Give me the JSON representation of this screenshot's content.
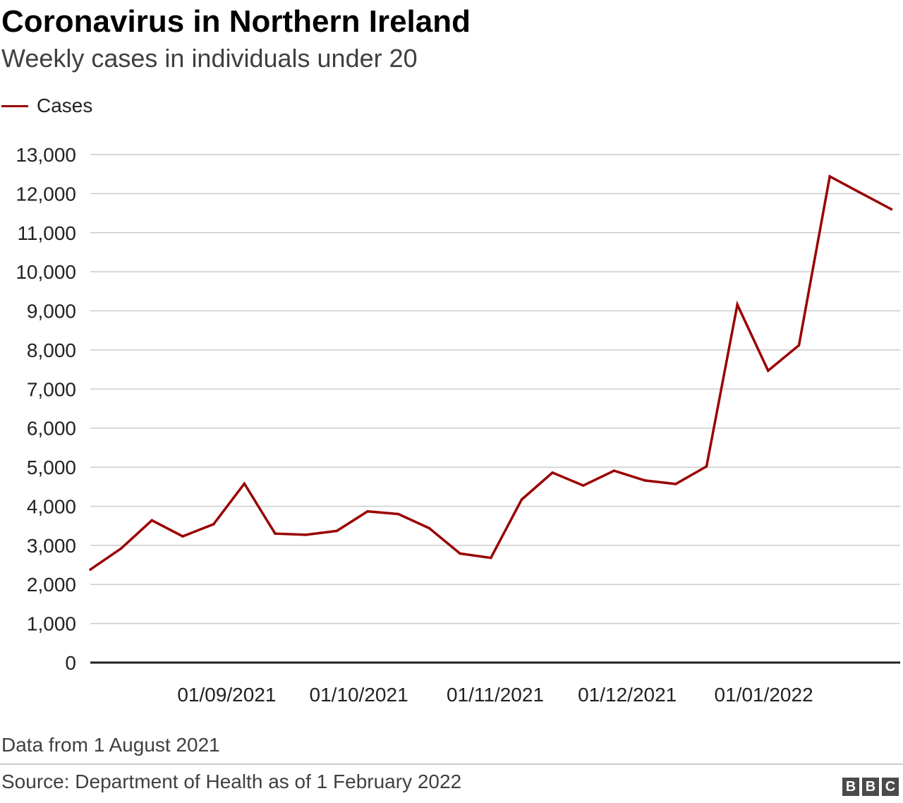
{
  "header": {
    "title": "Coronavirus in Northern Ireland",
    "subtitle": "Weekly cases in individuals under 20"
  },
  "legend": {
    "label": "Cases",
    "color": "#990000"
  },
  "chart_data": {
    "type": "line",
    "title": "Coronavirus in Northern Ireland",
    "subtitle": "Weekly cases in individuals under 20",
    "xlabel": "",
    "ylabel": "",
    "ylim": [
      0,
      13000
    ],
    "yticks": [
      0,
      1000,
      2000,
      3000,
      4000,
      5000,
      6000,
      7000,
      8000,
      9000,
      10000,
      11000,
      12000,
      13000
    ],
    "ytick_labels": [
      "0",
      "1,000",
      "2,000",
      "3,000",
      "4,000",
      "5,000",
      "6,000",
      "7,000",
      "8,000",
      "9,000",
      "10,000",
      "11,000",
      "12,000",
      "13,000"
    ],
    "xlim": [
      "2021-08-01",
      "2022-02-01"
    ],
    "xticks": [
      "2021-09-01",
      "2021-10-01",
      "2021-11-01",
      "2021-12-01",
      "2022-01-01"
    ],
    "xtick_labels": [
      "01/09/2021",
      "01/10/2021",
      "01/11/2021",
      "01/12/2021",
      "01/01/2022"
    ],
    "grid": true,
    "legend_position": "top-left",
    "series": [
      {
        "name": "Cases",
        "color": "#990000",
        "x": [
          "2021-08-01",
          "2021-08-08",
          "2021-08-15",
          "2021-08-22",
          "2021-08-29",
          "2021-09-05",
          "2021-09-12",
          "2021-09-19",
          "2021-09-26",
          "2021-10-03",
          "2021-10-10",
          "2021-10-17",
          "2021-10-24",
          "2021-10-31",
          "2021-11-07",
          "2021-11-14",
          "2021-11-21",
          "2021-11-28",
          "2021-12-05",
          "2021-12-12",
          "2021-12-19",
          "2021-12-26",
          "2022-01-02",
          "2022-01-09",
          "2022-01-16",
          "2022-01-23",
          "2022-01-30"
        ],
        "values": [
          2380,
          2920,
          3640,
          3230,
          3540,
          4580,
          3300,
          3270,
          3370,
          3870,
          3800,
          3440,
          2790,
          2680,
          4170,
          4860,
          4530,
          4910,
          4660,
          4570,
          5020,
          9160,
          7470,
          8120,
          12440,
          12020,
          11600
        ]
      }
    ]
  },
  "footer": {
    "note": "Data from 1 August 2021",
    "source": "Source: Department of Health as of 1 February 2022",
    "logo": [
      "B",
      "B",
      "C"
    ]
  }
}
